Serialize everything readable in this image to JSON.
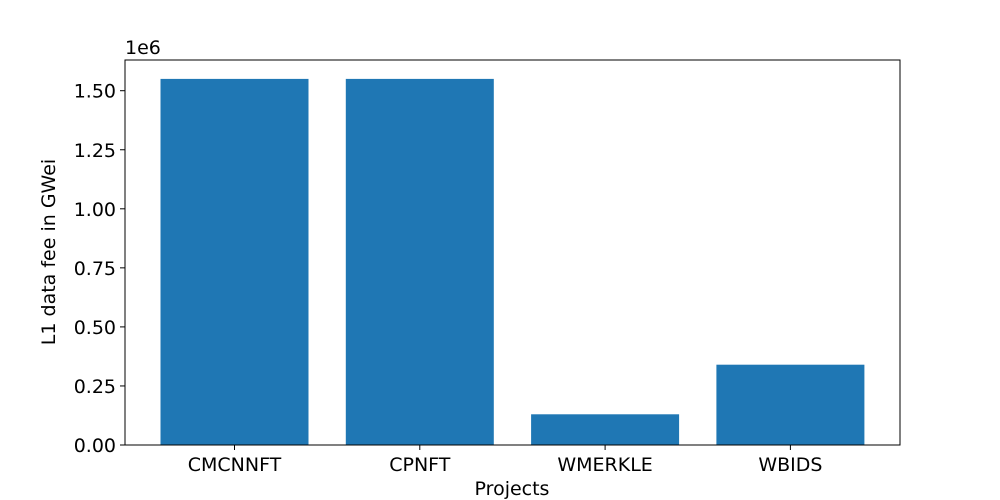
{
  "chart_data": {
    "type": "bar",
    "categories": [
      "CMCNNFT",
      "CPNFT",
      "WMERKLE",
      "WBIDS"
    ],
    "values": [
      1550000,
      1550000,
      130000,
      340000
    ],
    "xlabel": "Projects",
    "ylabel": "L1 data fee in GWei",
    "ylim": [
      0,
      1630000
    ],
    "y_ticks": [
      0,
      250000,
      500000,
      750000,
      1000000,
      1250000,
      1500000
    ],
    "y_tick_labels": [
      "0.00",
      "0.25",
      "0.50",
      "0.75",
      "1.00",
      "1.25",
      "1.50"
    ],
    "y_offset_label": "1e6",
    "grid": false,
    "legend": "none",
    "bar_color": "#1f77b4"
  }
}
